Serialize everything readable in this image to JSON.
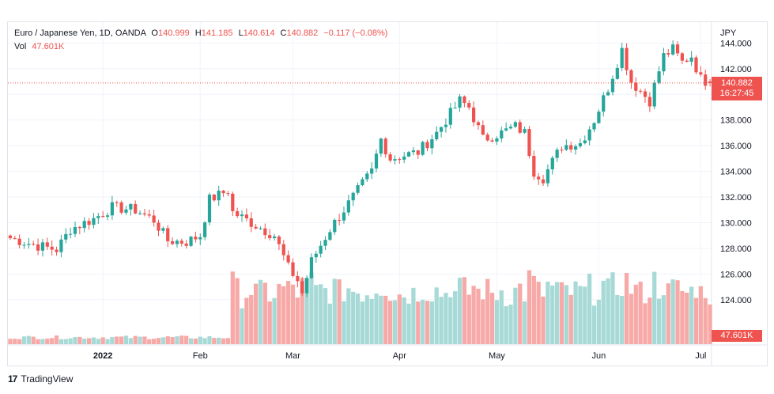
{
  "legend": {
    "symbol": "Euro / Japanese Yen, 1D, OANDA",
    "o_label": "O",
    "o_value": "140.999",
    "h_label": "H",
    "h_value": "141.185",
    "l_label": "L",
    "l_value": "140.614",
    "c_label": "C",
    "c_value": "140.882",
    "change": "−0.117 (−0.08%)",
    "vol_label": "Vol",
    "vol_value": "47.601K"
  },
  "price_badge": {
    "price": "140.882",
    "countdown": "16:27:45"
  },
  "volume_badge": "47.601K",
  "footer": {
    "logo": "17",
    "brand": "TradingView"
  },
  "colors": {
    "up": "#26a69a",
    "down": "#ef5350",
    "vol_up": "#a7dad6",
    "vol_down": "#f7a9a7",
    "grid": "#f0f3fa",
    "axis_text": "#131722"
  },
  "chart_data": {
    "type": "candlestick",
    "currency": "JPY",
    "last_price": 140.882,
    "ylim": [
      123,
      145.5
    ],
    "yticks": [
      "144.000",
      "142.000",
      "140.000",
      "138.000",
      "136.000",
      "134.000",
      "132.000",
      "130.000",
      "128.000",
      "126.000",
      "124.000"
    ],
    "xticks": [
      {
        "label": "2022",
        "index": 20,
        "bold": true
      },
      {
        "label": "Feb",
        "index": 41,
        "bold": false
      },
      {
        "label": "Mar",
        "index": 61,
        "bold": false
      },
      {
        "label": "Apr",
        "index": 84,
        "bold": false
      },
      {
        "label": "May",
        "index": 105,
        "bold": false
      },
      {
        "label": "Jun",
        "index": 127,
        "bold": false
      },
      {
        "label": "Jul",
        "index": 149,
        "bold": false
      }
    ],
    "x_count": 152,
    "vol_max": 70,
    "anchors": [
      [
        0,
        128.8
      ],
      [
        6,
        128.2
      ],
      [
        10,
        127.9
      ],
      [
        13,
        129.5
      ],
      [
        18,
        130.3
      ],
      [
        22,
        131.2
      ],
      [
        27,
        131.0
      ],
      [
        31,
        130.2
      ],
      [
        34,
        128.6
      ],
      [
        38,
        128.5
      ],
      [
        41,
        129.0
      ],
      [
        43,
        131.8
      ],
      [
        47,
        132.5
      ],
      [
        48,
        130.8
      ],
      [
        52,
        130.0
      ],
      [
        57,
        129.0
      ],
      [
        60,
        126.5
      ],
      [
        62,
        125.5
      ],
      [
        63,
        124.5
      ],
      [
        65,
        127.0
      ],
      [
        69,
        129.5
      ],
      [
        74,
        132.0
      ],
      [
        78,
        134.0
      ],
      [
        80,
        136.5
      ],
      [
        82,
        135.0
      ],
      [
        88,
        135.5
      ],
      [
        92,
        137.0
      ],
      [
        97,
        139.5
      ],
      [
        99,
        139.0
      ],
      [
        102,
        136.5
      ],
      [
        106,
        137.0
      ],
      [
        109,
        137.5
      ],
      [
        111,
        137.0
      ],
      [
        113,
        134.0
      ],
      [
        115,
        133.5
      ],
      [
        119,
        136.0
      ],
      [
        123,
        136.2
      ],
      [
        126,
        138.0
      ],
      [
        129,
        140.5
      ],
      [
        132,
        143.5
      ],
      [
        134,
        141.0
      ],
      [
        138,
        139.5
      ],
      [
        141,
        143.0
      ],
      [
        143,
        143.5
      ],
      [
        145,
        142.5
      ],
      [
        147,
        143.0
      ],
      [
        149,
        141.2
      ],
      [
        151,
        140.882
      ]
    ],
    "candles": [],
    "volume": []
  }
}
